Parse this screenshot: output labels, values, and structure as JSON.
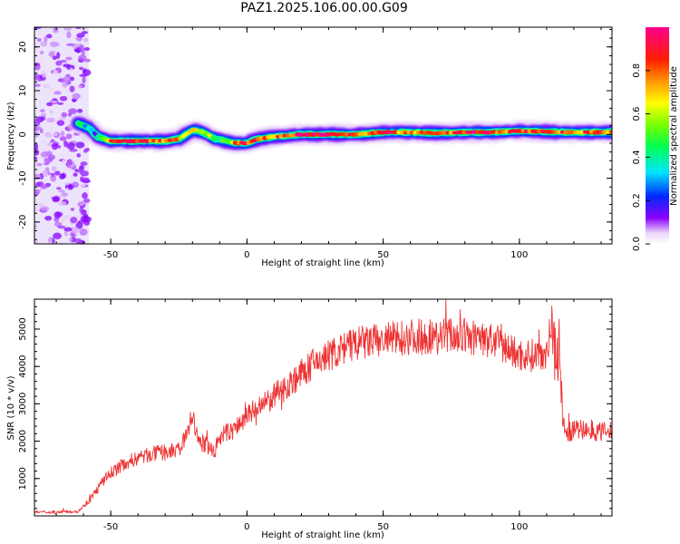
{
  "title": "PAZ1.2025.106.00.00.G09",
  "chart_data": [
    {
      "type": "heatmap",
      "xlabel": "Height of straight line (km)",
      "ylabel": "Frequency (Hz)",
      "xlim": [
        -78,
        134
      ],
      "ylim": [
        -25,
        24.5
      ],
      "xticks": [
        -50,
        0,
        50,
        100
      ],
      "yticks": [
        -20,
        -10,
        0,
        10,
        20
      ],
      "noise_region_x": [
        -78,
        -58
      ],
      "ridge": {
        "x": [
          -62,
          -58,
          -55,
          -50,
          -45,
          -38,
          -30,
          -25,
          -20,
          -16,
          -12,
          -8,
          -4,
          0,
          4,
          10,
          20,
          30,
          40,
          50,
          60,
          70,
          80,
          90,
          100,
          110,
          120,
          134
        ],
        "f": [
          2.5,
          1.5,
          -0.5,
          -1.5,
          -1.5,
          -1.5,
          -1.5,
          -1.0,
          1.0,
          0.5,
          -1.0,
          -1.5,
          -2.0,
          -2.0,
          -1.0,
          -0.5,
          0.0,
          0.0,
          0.0,
          0.5,
          0.5,
          0.3,
          0.5,
          0.5,
          0.8,
          0.6,
          0.5,
          0.5
        ],
        "amp": [
          0.35,
          0.3,
          0.3,
          0.88,
          0.9,
          0.85,
          0.8,
          0.7,
          0.72,
          0.6,
          0.45,
          0.5,
          0.78,
          0.88,
          0.82,
          0.75,
          0.92,
          0.95,
          0.8,
          0.82,
          0.78,
          0.8,
          0.88,
          0.85,
          0.8,
          0.85,
          0.82,
          0.78
        ]
      },
      "colorbar": {
        "label": "Normalized spectral amplitude",
        "ticks": [
          0.0,
          0.2,
          0.4,
          0.6,
          0.8
        ],
        "range": [
          0,
          1
        ]
      }
    },
    {
      "type": "line",
      "xlabel": "Height of straight line (km)",
      "ylabel": "SNR (10 * v/v)",
      "xlim": [
        -78,
        134
      ],
      "ylim": [
        0,
        5800
      ],
      "xticks": [
        -50,
        0,
        50,
        100
      ],
      "yticks": [
        1000,
        2000,
        3000,
        4000,
        5000
      ],
      "color": "#ee3333",
      "series": [
        {
          "name": "SNR",
          "x": [
            -78,
            -70,
            -62,
            -58,
            -55,
            -52,
            -50,
            -45,
            -40,
            -35,
            -30,
            -25,
            -22,
            -20,
            -18,
            -15,
            -12,
            -10,
            -8,
            -5,
            -2,
            0,
            5,
            10,
            15,
            20,
            25,
            30,
            35,
            40,
            45,
            50,
            55,
            60,
            65,
            70,
            75,
            80,
            85,
            90,
            95,
            100,
            105,
            110,
            112,
            113,
            115,
            116,
            117,
            120,
            125,
            130,
            134
          ],
          "y": [
            100,
            100,
            120,
            400,
            700,
            1000,
            1150,
            1400,
            1550,
            1650,
            1700,
            1750,
            2200,
            2700,
            2000,
            1900,
            1700,
            2100,
            2200,
            2300,
            2500,
            2700,
            2900,
            3200,
            3500,
            3800,
            4100,
            4300,
            4450,
            4600,
            4650,
            4700,
            4750,
            4800,
            4800,
            4800,
            4850,
            4800,
            4750,
            4700,
            4500,
            4300,
            4300,
            4400,
            5200,
            4500,
            4200,
            2500,
            2200,
            2300,
            2300,
            2250,
            2250
          ]
        }
      ]
    }
  ]
}
